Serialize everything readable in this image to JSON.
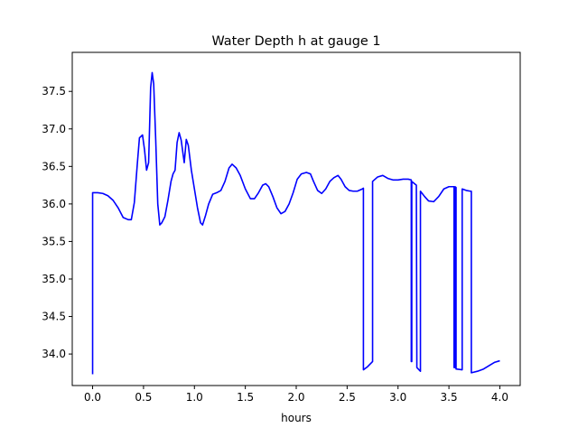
{
  "chart_data": {
    "type": "line",
    "title": "Water Depth h at gauge 1",
    "xlabel": "hours",
    "ylabel": "",
    "xlim": [
      -0.2,
      4.2
    ],
    "ylim": [
      33.58,
      38.02
    ],
    "xticks": [
      0.0,
      0.5,
      1.0,
      1.5,
      2.0,
      2.5,
      3.0,
      3.5,
      4.0
    ],
    "xtick_labels": [
      "0.0",
      "0.5",
      "1.0",
      "1.5",
      "2.0",
      "2.5",
      "3.0",
      "3.5",
      "4.0"
    ],
    "yticks": [
      34.0,
      34.5,
      35.0,
      35.5,
      36.0,
      36.5,
      37.0,
      37.5
    ],
    "ytick_labels": [
      "34.0",
      "34.5",
      "35.0",
      "35.5",
      "36.0",
      "36.5",
      "37.0",
      "37.5"
    ],
    "grid": false,
    "line_color": "#0000ff",
    "series": [
      {
        "name": "",
        "points": [
          [
            0.0,
            33.73
          ],
          [
            0.0,
            36.15
          ],
          [
            0.05,
            36.15
          ],
          [
            0.1,
            36.14
          ],
          [
            0.15,
            36.11
          ],
          [
            0.2,
            36.05
          ],
          [
            0.25,
            35.95
          ],
          [
            0.3,
            35.82
          ],
          [
            0.35,
            35.79
          ],
          [
            0.38,
            35.79
          ],
          [
            0.41,
            36.02
          ],
          [
            0.44,
            36.55
          ],
          [
            0.46,
            36.88
          ],
          [
            0.49,
            36.92
          ],
          [
            0.51,
            36.72
          ],
          [
            0.53,
            36.45
          ],
          [
            0.55,
            36.55
          ],
          [
            0.57,
            37.55
          ],
          [
            0.585,
            37.75
          ],
          [
            0.6,
            37.6
          ],
          [
            0.62,
            36.85
          ],
          [
            0.64,
            36.0
          ],
          [
            0.66,
            35.72
          ],
          [
            0.68,
            35.75
          ],
          [
            0.71,
            35.83
          ],
          [
            0.74,
            36.05
          ],
          [
            0.77,
            36.3
          ],
          [
            0.79,
            36.4
          ],
          [
            0.81,
            36.45
          ],
          [
            0.83,
            36.82
          ],
          [
            0.85,
            36.95
          ],
          [
            0.87,
            36.85
          ],
          [
            0.9,
            36.55
          ],
          [
            0.92,
            36.86
          ],
          [
            0.94,
            36.78
          ],
          [
            0.97,
            36.45
          ],
          [
            1.0,
            36.2
          ],
          [
            1.03,
            35.95
          ],
          [
            1.06,
            35.75
          ],
          [
            1.08,
            35.72
          ],
          [
            1.11,
            35.85
          ],
          [
            1.14,
            36.0
          ],
          [
            1.18,
            36.13
          ],
          [
            1.22,
            36.15
          ],
          [
            1.26,
            36.18
          ],
          [
            1.3,
            36.3
          ],
          [
            1.34,
            36.48
          ],
          [
            1.37,
            36.53
          ],
          [
            1.41,
            36.48
          ],
          [
            1.45,
            36.38
          ],
          [
            1.5,
            36.2
          ],
          [
            1.55,
            36.07
          ],
          [
            1.59,
            36.07
          ],
          [
            1.63,
            36.15
          ],
          [
            1.67,
            36.25
          ],
          [
            1.7,
            36.27
          ],
          [
            1.73,
            36.23
          ],
          [
            1.77,
            36.1
          ],
          [
            1.81,
            35.95
          ],
          [
            1.85,
            35.87
          ],
          [
            1.89,
            35.9
          ],
          [
            1.93,
            36.0
          ],
          [
            1.97,
            36.15
          ],
          [
            2.01,
            36.33
          ],
          [
            2.05,
            36.4
          ],
          [
            2.1,
            36.42
          ],
          [
            2.14,
            36.4
          ],
          [
            2.17,
            36.3
          ],
          [
            2.21,
            36.18
          ],
          [
            2.25,
            36.14
          ],
          [
            2.29,
            36.2
          ],
          [
            2.33,
            36.3
          ],
          [
            2.37,
            36.35
          ],
          [
            2.41,
            36.38
          ],
          [
            2.44,
            36.33
          ],
          [
            2.48,
            36.23
          ],
          [
            2.52,
            36.18
          ],
          [
            2.56,
            36.17
          ],
          [
            2.6,
            36.17
          ],
          [
            2.65,
            36.2
          ],
          [
            2.66,
            36.21
          ],
          [
            2.66,
            33.79
          ],
          [
            2.7,
            33.83
          ],
          [
            2.75,
            33.9
          ],
          [
            2.75,
            36.3
          ],
          [
            2.8,
            36.36
          ],
          [
            2.85,
            36.38
          ],
          [
            2.9,
            36.34
          ],
          [
            2.95,
            36.32
          ],
          [
            3.0,
            36.32
          ],
          [
            3.05,
            36.33
          ],
          [
            3.1,
            36.33
          ],
          [
            3.13,
            36.32
          ],
          [
            3.13,
            33.9
          ],
          [
            3.135,
            33.9
          ],
          [
            3.135,
            36.3
          ],
          [
            3.18,
            36.25
          ],
          [
            3.185,
            33.82
          ],
          [
            3.22,
            33.77
          ],
          [
            3.22,
            36.17
          ],
          [
            3.26,
            36.1
          ],
          [
            3.3,
            36.04
          ],
          [
            3.35,
            36.03
          ],
          [
            3.4,
            36.1
          ],
          [
            3.45,
            36.2
          ],
          [
            3.5,
            36.23
          ],
          [
            3.54,
            36.23
          ],
          [
            3.55,
            36.23
          ],
          [
            3.55,
            33.82
          ],
          [
            3.56,
            33.82
          ],
          [
            3.56,
            36.23
          ],
          [
            3.57,
            36.22
          ],
          [
            3.57,
            33.8
          ],
          [
            3.63,
            33.79
          ],
          [
            3.63,
            36.2
          ],
          [
            3.67,
            36.18
          ],
          [
            3.71,
            36.17
          ],
          [
            3.72,
            36.17
          ],
          [
            3.72,
            33.75
          ],
          [
            3.78,
            33.77
          ],
          [
            3.84,
            33.8
          ],
          [
            3.9,
            33.85
          ],
          [
            3.95,
            33.89
          ],
          [
            4.0,
            33.91
          ]
        ]
      }
    ]
  }
}
